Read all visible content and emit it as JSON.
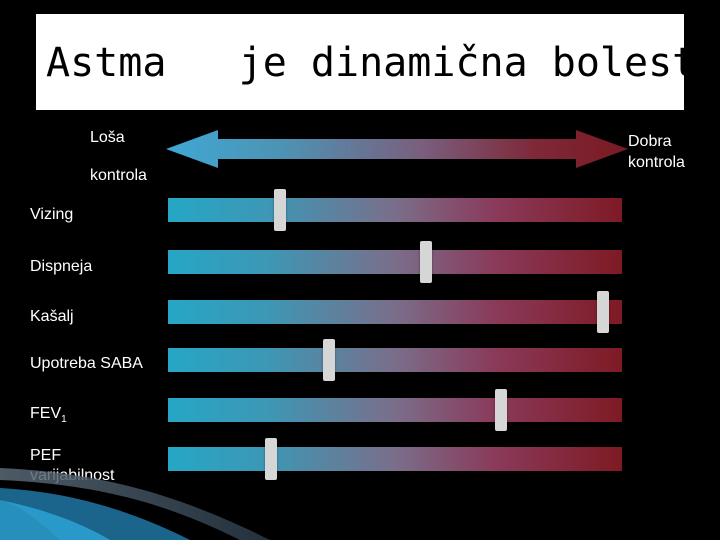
{
  "title": {
    "part1": "Astma",
    "part2": "je dinamična bolest"
  },
  "scale": {
    "left_label_line1": "Loša",
    "left_label_line2": "kontrola",
    "right_label_line1": "Dobra",
    "right_label_line2": "kontrola"
  },
  "rows": [
    {
      "label": "Vizing",
      "level": 0.24
    },
    {
      "label": "Dispneja",
      "level": 0.57
    },
    {
      "label": "Kašalj",
      "level": 0.97
    },
    {
      "label": "Upotreba SABA",
      "level": 0.35
    },
    {
      "label": "FEV",
      "label_sub": "1",
      "level": 0.74
    },
    {
      "label_line1": "PEF",
      "label_line2": "varijabilnost",
      "level": 0.22
    }
  ],
  "colors": {
    "left": "#25a7c5",
    "right": "#7e1a24",
    "marker": "#d6d6d6"
  }
}
